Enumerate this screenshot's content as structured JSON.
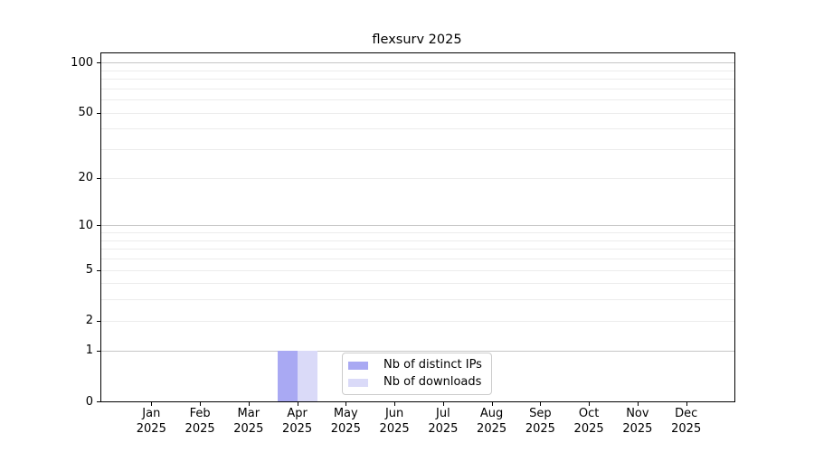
{
  "chart_data": {
    "type": "bar",
    "title": "flexsurv 2025",
    "categories": [
      "Jan",
      "Feb",
      "Mar",
      "Apr",
      "May",
      "Jun",
      "Jul",
      "Aug",
      "Sep",
      "Oct",
      "Nov",
      "Dec"
    ],
    "year_label": "2025",
    "series": [
      {
        "name": "Nb of distinct IPs",
        "color": "#a9a9f3",
        "values": [
          0,
          0,
          0,
          1,
          0,
          0,
          0,
          0,
          0,
          0,
          0,
          0
        ]
      },
      {
        "name": "Nb of downloads",
        "color": "#dadaf8",
        "values": [
          0,
          0,
          0,
          1,
          0,
          0,
          0,
          0,
          0,
          0,
          0,
          0
        ]
      }
    ],
    "yscale": "log1p",
    "ylim": [
      0,
      113.5
    ],
    "yticks": [
      0,
      1,
      2,
      5,
      10,
      20,
      50,
      100
    ],
    "major_gridlines": [
      1,
      10,
      100
    ],
    "minor_gridlines": [
      2,
      3,
      4,
      5,
      6,
      7,
      8,
      9,
      20,
      30,
      40,
      50,
      60,
      70,
      80,
      90
    ],
    "grid": true,
    "legend_position": "lower center",
    "grid_colors": {
      "minor": "#ececec",
      "major": "#c6c6c6"
    }
  }
}
